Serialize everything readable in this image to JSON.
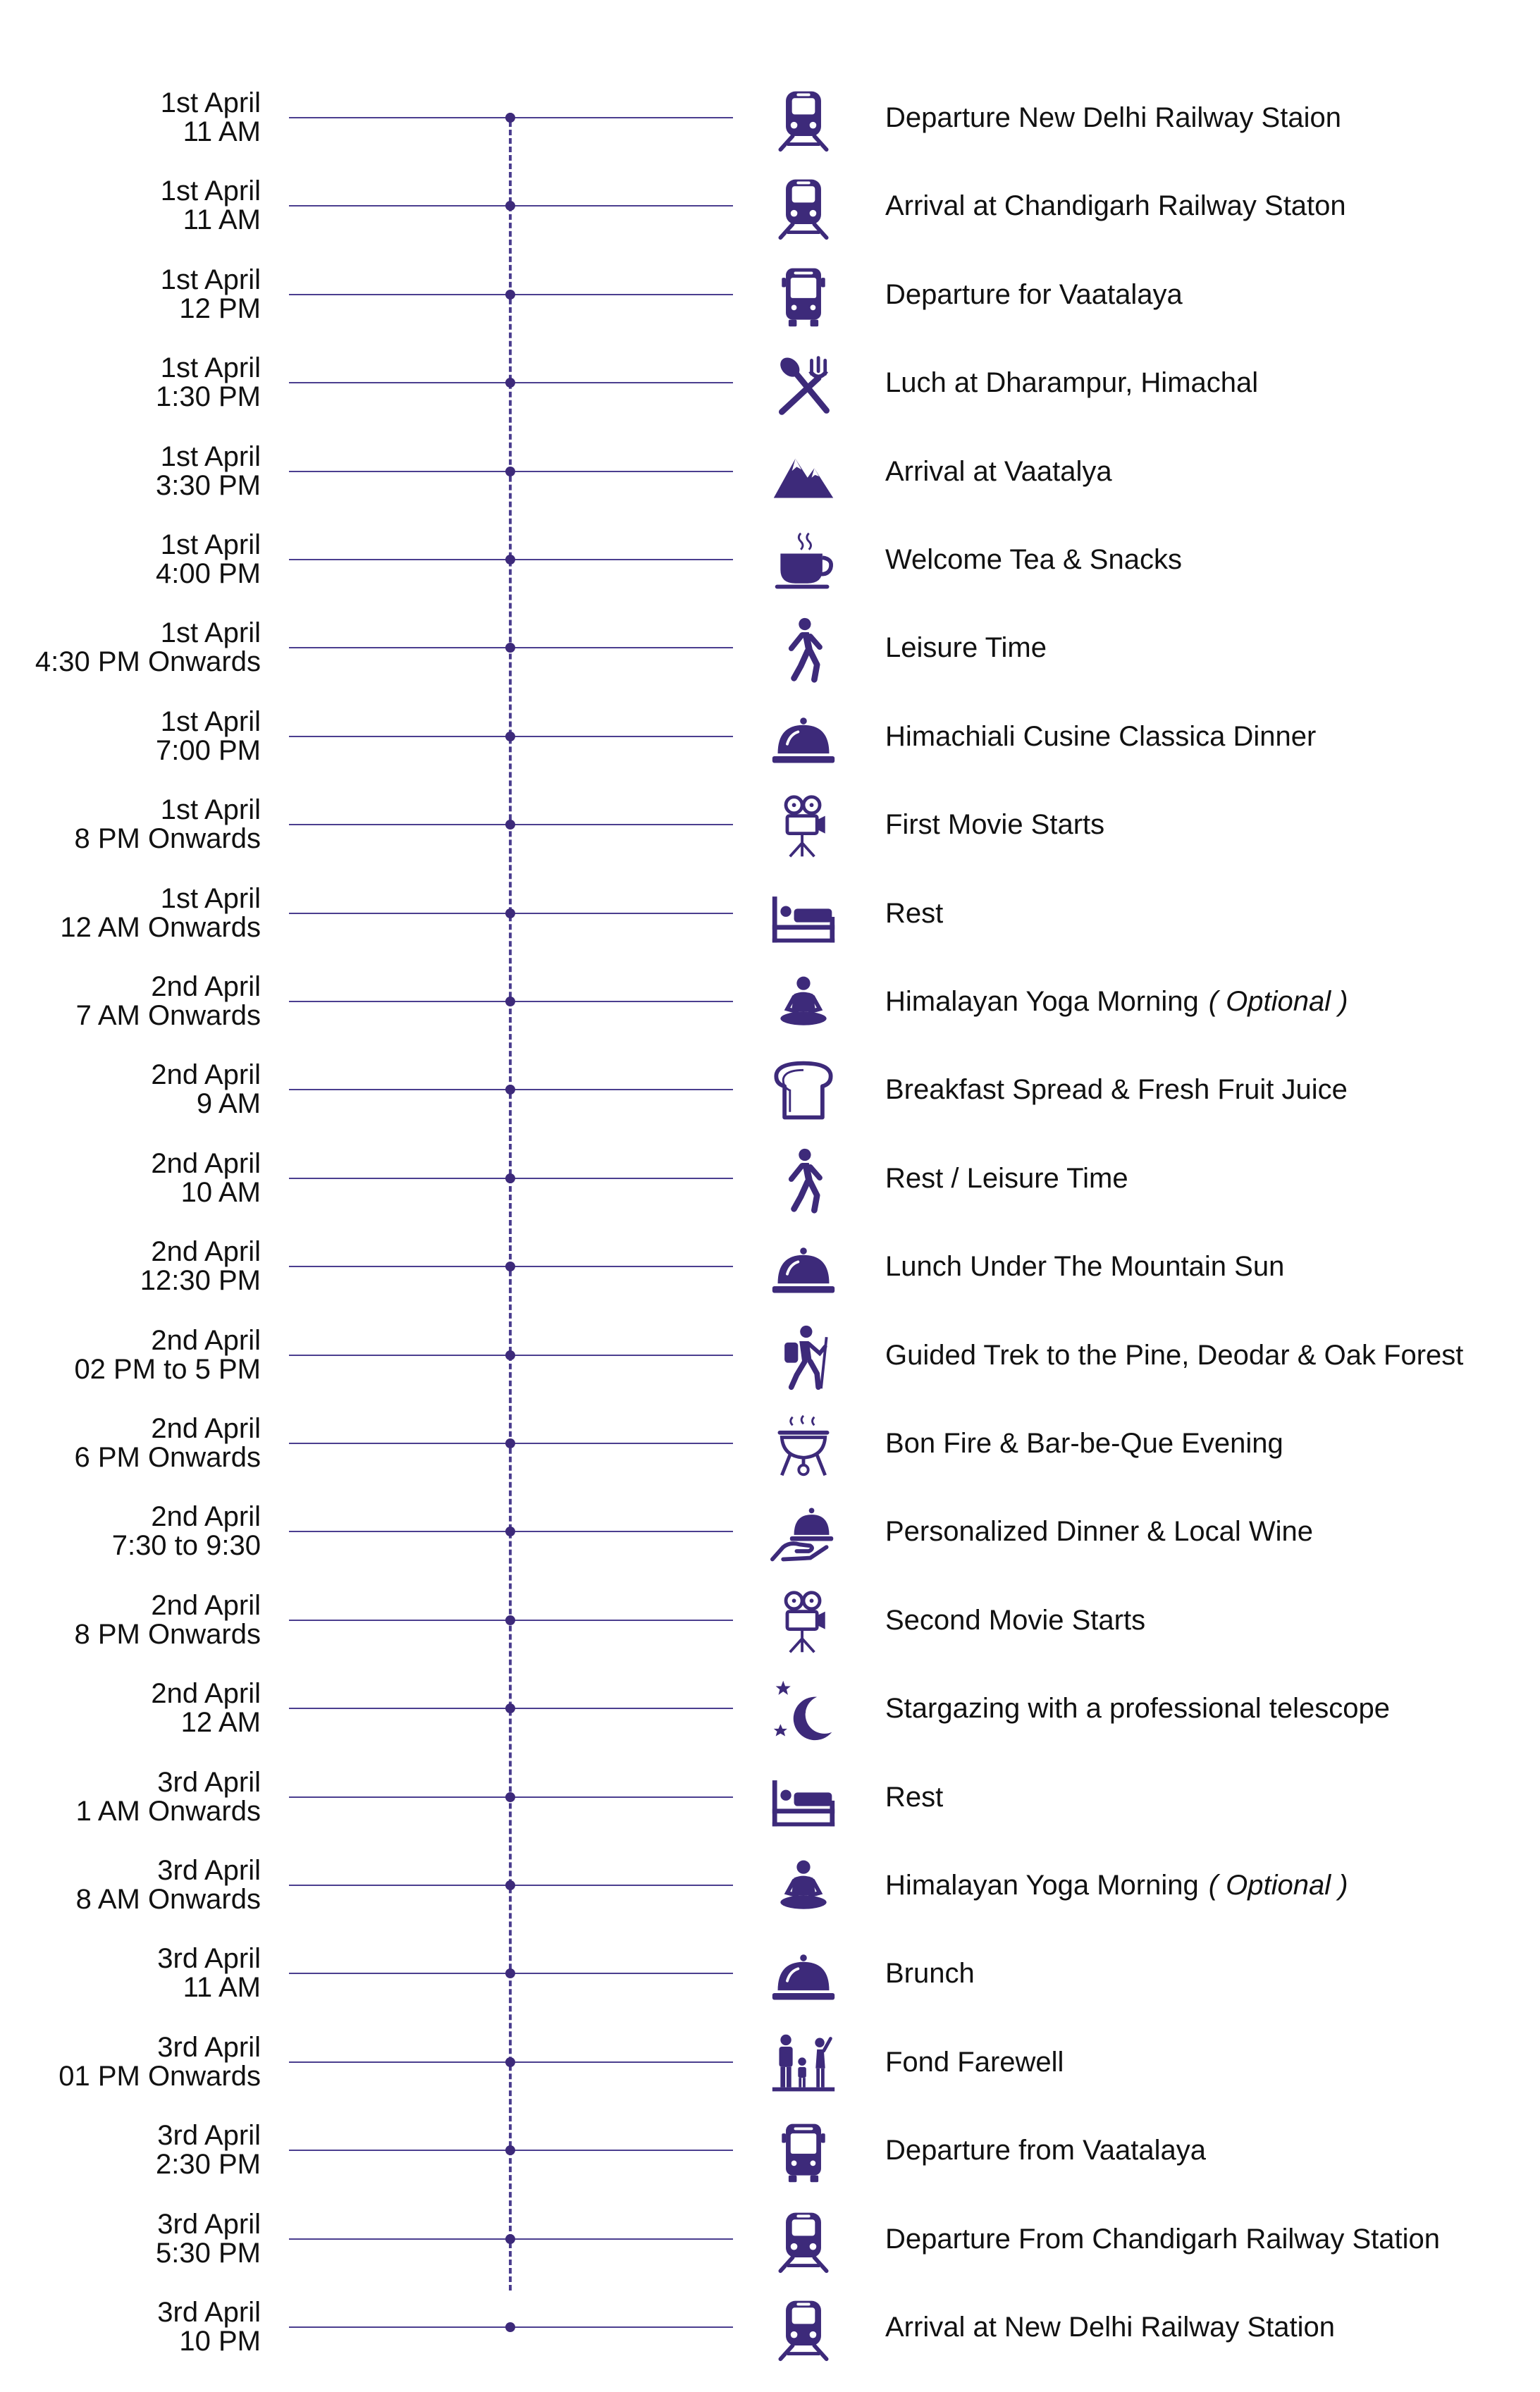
{
  "accent": "#3d2a7a",
  "schedule": [
    {
      "date": "1st April",
      "time": "11 AM",
      "activity": "Departure New Delhi Railway Staion",
      "icon": "train-icon"
    },
    {
      "date": "1st April",
      "time": "11 AM",
      "activity": "Arrival at Chandigarh Railway Staton",
      "icon": "train-icon"
    },
    {
      "date": "1st April",
      "time": "12 PM",
      "activity": "Departure for Vaatalaya",
      "icon": "bus-icon"
    },
    {
      "date": "1st April",
      "time": "1:30 PM",
      "activity": "Luch at Dharampur, Himachal",
      "icon": "fork-spoon-icon"
    },
    {
      "date": "1st April",
      "time": "3:30 PM",
      "activity": "Arrival at Vaatalya",
      "icon": "mountain-icon"
    },
    {
      "date": "1st April",
      "time": "4:00 PM",
      "activity": "Welcome Tea & Snacks",
      "icon": "tea-cup-icon"
    },
    {
      "date": "1st April",
      "time": "4:30 PM Onwards",
      "activity": "Leisure Time",
      "icon": "walking-person-icon"
    },
    {
      "date": "1st April",
      "time": "7:00 PM",
      "activity": "Himachiali Cusine Classica Dinner",
      "icon": "cloche-icon"
    },
    {
      "date": "1st April",
      "time": "8 PM Onwards",
      "activity": "First Movie Starts",
      "icon": "movie-projector-icon"
    },
    {
      "date": "1st April",
      "time": "12 AM Onwards",
      "activity": "Rest",
      "icon": "bed-icon"
    },
    {
      "date": "2nd April",
      "time": "7 AM Onwards",
      "activity": "Himalayan Yoga Morning",
      "note": "( Optional )",
      "icon": "yoga-icon"
    },
    {
      "date": "2nd April",
      "time": "9 AM",
      "activity": "Breakfast Spread & Fresh Fruit Juice",
      "icon": "bread-icon"
    },
    {
      "date": "2nd April",
      "time": "10 AM",
      "activity": "Rest / Leisure Time",
      "icon": "walking-person-icon"
    },
    {
      "date": "2nd April",
      "time": "12:30 PM",
      "activity": "Lunch Under The Mountain Sun",
      "icon": "cloche-icon"
    },
    {
      "date": "2nd April",
      "time": "02 PM to 5 PM",
      "activity": "Guided Trek to the Pine, Deodar & Oak Forest",
      "icon": "hiker-icon"
    },
    {
      "date": "2nd April",
      "time": "6 PM Onwards",
      "activity": "Bon Fire & Bar-be-Que Evening",
      "icon": "barbecue-grill-icon"
    },
    {
      "date": "2nd April",
      "time": "7:30 to 9:30",
      "activity": "Personalized Dinner & Local Wine",
      "icon": "served-cloche-icon"
    },
    {
      "date": "2nd April",
      "time": "8 PM Onwards",
      "activity": "Second Movie Starts",
      "icon": "movie-projector-icon"
    },
    {
      "date": "2nd April",
      "time": "12 AM",
      "activity": "Stargazing with a professional telescope",
      "icon": "moon-stars-icon"
    },
    {
      "date": "3rd April",
      "time": "1 AM Onwards",
      "activity": "Rest",
      "icon": "bed-icon"
    },
    {
      "date": "3rd April",
      "time": "8 AM Onwards",
      "activity": "Himalayan Yoga Morning",
      "note": "( Optional )",
      "icon": "yoga-icon"
    },
    {
      "date": "3rd April",
      "time": "11 AM",
      "activity": "Brunch",
      "icon": "cloche-icon"
    },
    {
      "date": "3rd April",
      "time": "01 PM Onwards",
      "activity": "Fond Farewell",
      "icon": "family-icon"
    },
    {
      "date": "3rd April",
      "time": "2:30 PM",
      "activity": "Departure from Vaatalaya",
      "icon": "bus-icon"
    },
    {
      "date": "3rd April",
      "time": "5:30 PM",
      "activity": "Departure From Chandigarh Railway Station",
      "icon": "train-icon"
    },
    {
      "date": "3rd April",
      "time": "10 PM",
      "activity": "Arrival at New Delhi Railway Station",
      "icon": "train-icon"
    }
  ]
}
